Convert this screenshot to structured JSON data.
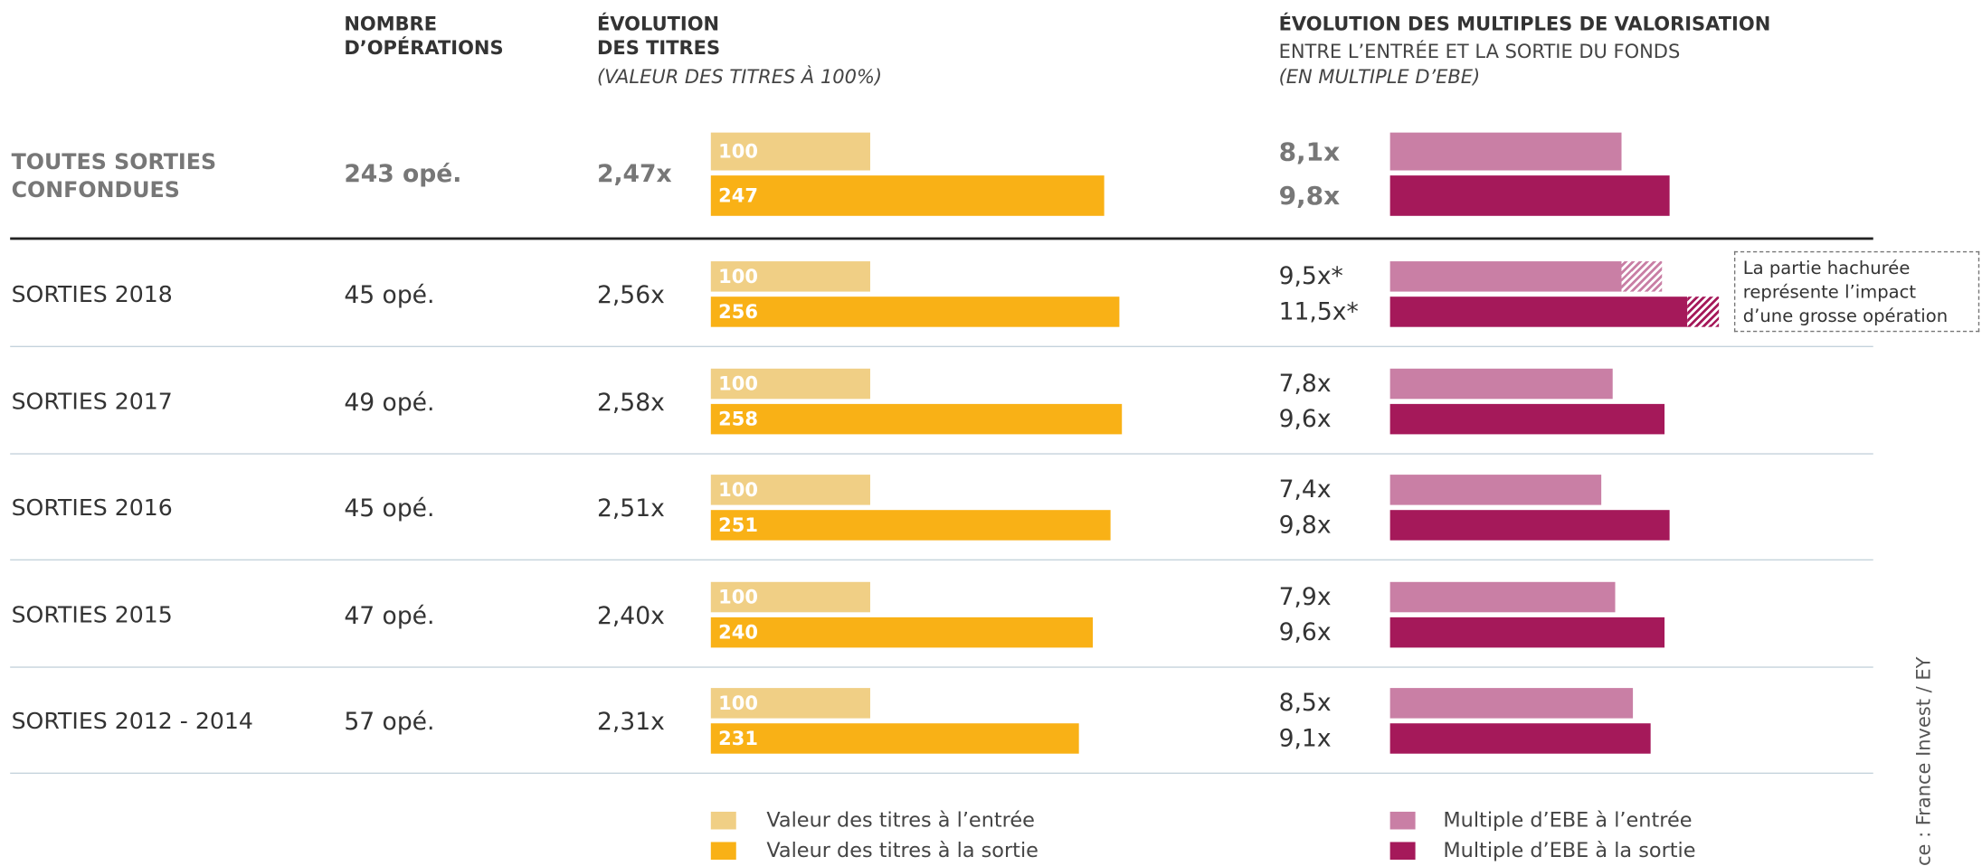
{
  "chart_data": {
    "type": "bar",
    "headers": [
      {
        "title": "NOMBRE D’OPÉRATIONS"
      },
      {
        "title": "ÉVOLUTION DES TITRES",
        "subtitle": "(VALEUR DES TITRES À 100%)"
      },
      {
        "title": "ÉVOLUTION DES MULTIPLES DE VALORISATION",
        "subtitle": "ENTRE L’ENTRÉE ET LA SORTIE DU FONDS",
        "note": "(EN MULTIPLE D’EBE)"
      }
    ],
    "categories": [
      "TOUTES SORTIES CONFONDUES",
      "SORTIES 2018",
      "SORTIES 2017",
      "SORTIES 2016",
      "SORTIES 2015",
      "SORTIES 2012 - 2014"
    ],
    "operations": [
      "243 opé.",
      "45 opé.",
      "49 opé.",
      "45 opé.",
      "47 opé.",
      "57 opé."
    ],
    "growth": [
      "2,47x",
      "2,56x",
      "2,58x",
      "2,51x",
      "2,40x",
      "2,31x"
    ],
    "titres": {
      "xlim": [
        0,
        300
      ],
      "series": [
        {
          "name": "Valeur des titres à l’entrée",
          "color": "#f0cf85",
          "values": [
            100,
            100,
            100,
            100,
            100,
            100
          ]
        },
        {
          "name": "Valeur des titres à la sortie",
          "color": "#f9b116",
          "values": [
            247,
            256,
            258,
            251,
            240,
            231
          ]
        }
      ]
    },
    "multiples": {
      "xlim": [
        0,
        12
      ],
      "series": [
        {
          "name": "Multiple d’EBE à l’entrée",
          "color": "#c97fa5",
          "values": [
            8.1,
            9.5,
            7.8,
            7.4,
            7.9,
            8.5
          ],
          "value_labels": [
            "8,1x",
            "9,5x*",
            "7,8x",
            "7,4x",
            "7,9x",
            "8,5x"
          ],
          "hatch_from": [
            null,
            8.1,
            null,
            null,
            null,
            null
          ]
        },
        {
          "name": "Multiple d’EBE à la sortie",
          "color": "#a5195a",
          "values": [
            9.8,
            11.5,
            9.6,
            9.8,
            9.6,
            9.1
          ],
          "value_labels": [
            "9,8x",
            "11,5x*",
            "9,6x",
            "9,8x",
            "9,6x",
            "9,1x"
          ],
          "hatch_from": [
            null,
            10.4,
            null,
            null,
            null,
            null
          ]
        }
      ]
    },
    "annotation": "La partie hachurée représente l’impact d’une grosse opération",
    "source": "ce : France Invest / EY"
  }
}
